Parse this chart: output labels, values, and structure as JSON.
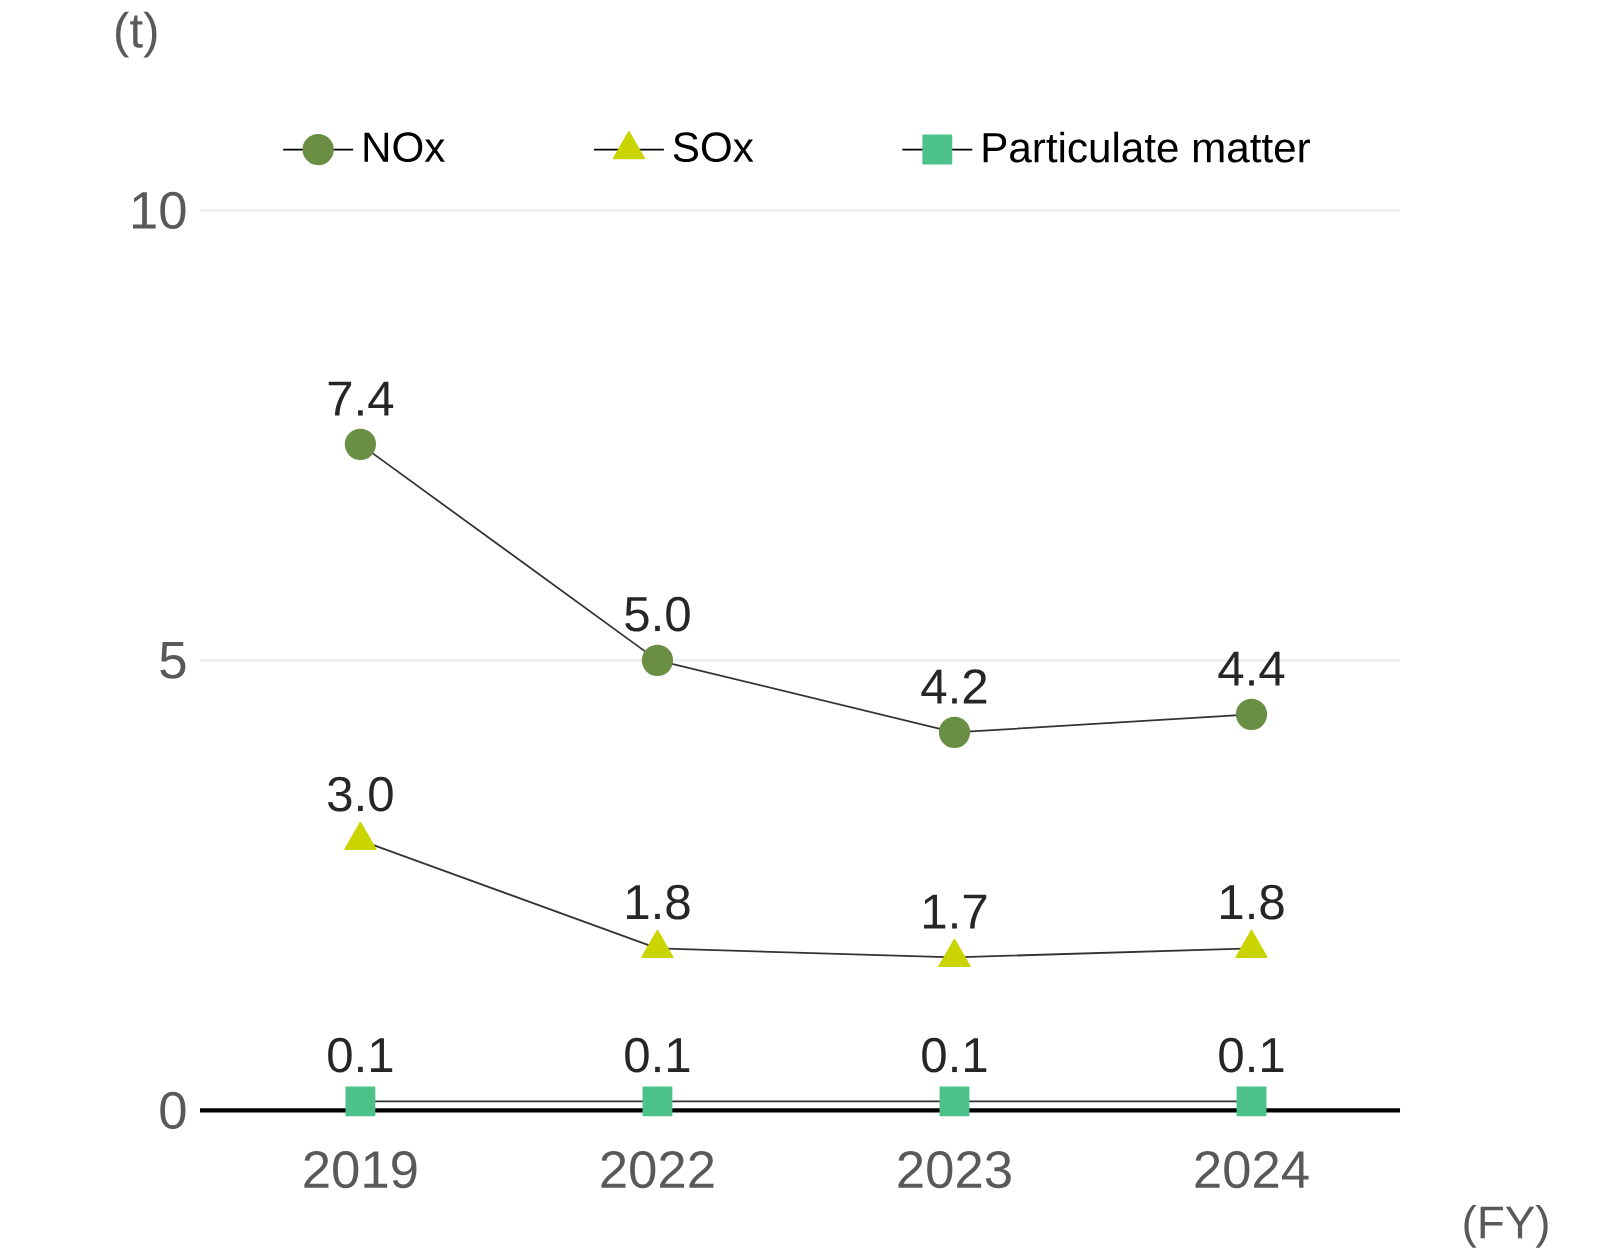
{
  "chart_data": {
    "type": "line",
    "ylabel": "(t)",
    "xlabel": "(FY)",
    "categories": [
      "2019",
      "2022",
      "2023",
      "2024"
    ],
    "series": [
      {
        "name": "NOx",
        "color": "#6b8e45",
        "marker": "circle",
        "values": [
          7.4,
          5.0,
          4.2,
          4.4
        ],
        "value_labels": [
          "7.4",
          "5.0",
          "4.2",
          "4.4"
        ]
      },
      {
        "name": "SOx",
        "color": "#c9d400",
        "marker": "triangle",
        "values": [
          3.0,
          1.8,
          1.7,
          1.8
        ],
        "value_labels": [
          "3.0",
          "1.8",
          "1.7",
          "1.8"
        ]
      },
      {
        "name": "Particulate matter",
        "color": "#4cc28a",
        "marker": "square",
        "values": [
          0.1,
          0.1,
          0.1,
          0.1
        ],
        "value_labels": [
          "0.1",
          "0.1",
          "0.1",
          "0.1"
        ]
      }
    ],
    "ylim": [
      0,
      10
    ],
    "yticks": [
      0,
      5,
      10
    ],
    "grid": "y",
    "legend": "top",
    "line_style": "solid"
  }
}
